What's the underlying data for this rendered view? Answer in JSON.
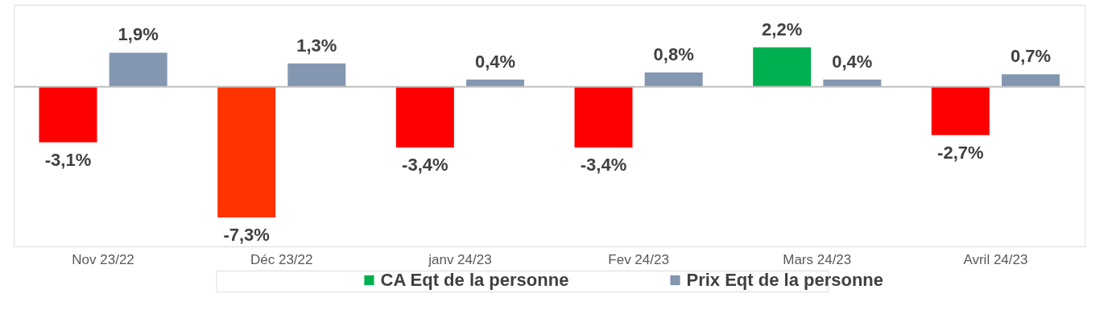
{
  "chart_data": {
    "type": "bar",
    "categories": [
      "Nov 23/22",
      "Déc  23/22",
      "janv  24/23",
      "Fev 24/23",
      "Mars 24/23",
      "Avril 24/23"
    ],
    "series": [
      {
        "name": "CA Eqt de la personne",
        "color": "#00b050",
        "colors": [
          "#ff0000",
          "#ff3300",
          "#ff0000",
          "#ff0000",
          "#00b050",
          "#ff0000"
        ],
        "values": [
          -3.1,
          -7.3,
          -3.4,
          -3.4,
          2.2,
          -2.7
        ],
        "value_labels": [
          "-3,1%",
          "-7,3%",
          "-3,4%",
          "-3,4%",
          "2,2%",
          "-2,7%"
        ]
      },
      {
        "name": "Prix Eqt de la personne",
        "color": "#8497b0",
        "values": [
          1.9,
          1.3,
          0.4,
          0.8,
          0.4,
          0.7
        ],
        "value_labels": [
          "1,9%",
          "1,3%",
          "0,4%",
          "0,8%",
          "0,4%",
          "0,7%"
        ]
      }
    ],
    "legend": "bottom",
    "grid": false
  }
}
